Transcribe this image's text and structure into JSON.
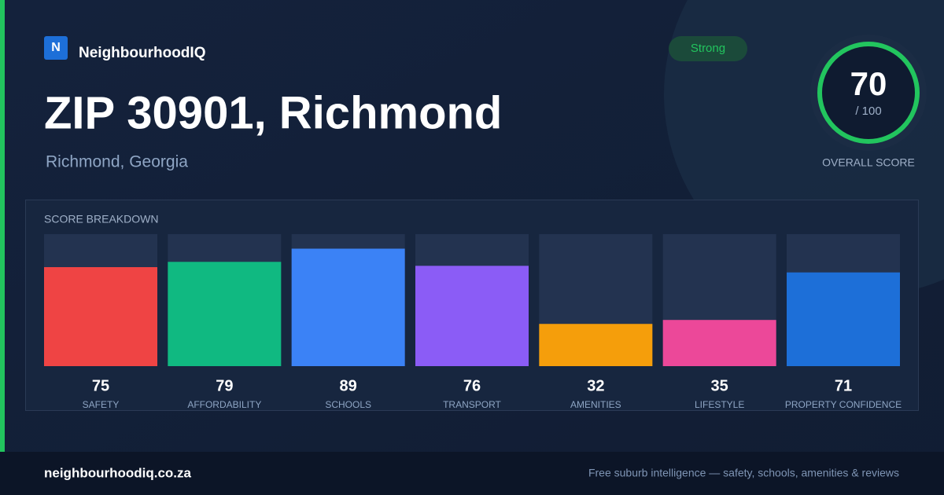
{
  "brand": {
    "logo": "N",
    "name": "NeighbourhoodIQ"
  },
  "badge": "Strong",
  "title": "ZIP 30901, Richmond",
  "subtitle": "Richmond, Georgia",
  "overall": {
    "score": 70,
    "out_of": "/ 100",
    "label": "OVERALL SCORE"
  },
  "breakdown": {
    "title": "SCORE BREAKDOWN",
    "items": [
      {
        "label": "SAFETY",
        "value": 75,
        "color": "#ef4444"
      },
      {
        "label": "AFFORDABILITY",
        "value": 79,
        "color": "#10b981"
      },
      {
        "label": "SCHOOLS",
        "value": 89,
        "color": "#3b82f6"
      },
      {
        "label": "TRANSPORT",
        "value": 76,
        "color": "#8b5cf6"
      },
      {
        "label": "AMENITIES",
        "value": 32,
        "color": "#f59e0b"
      },
      {
        "label": "LIFESTYLE",
        "value": 35,
        "color": "#ec4899"
      },
      {
        "label": "PROPERTY CONFIDENCE",
        "value": 71,
        "color": "#1d6fd8"
      }
    ]
  },
  "footer": {
    "site": "neighbourhoodiq.co.za",
    "tagline": "Free suburb intelligence — safety, schools, amenities & reviews"
  }
}
